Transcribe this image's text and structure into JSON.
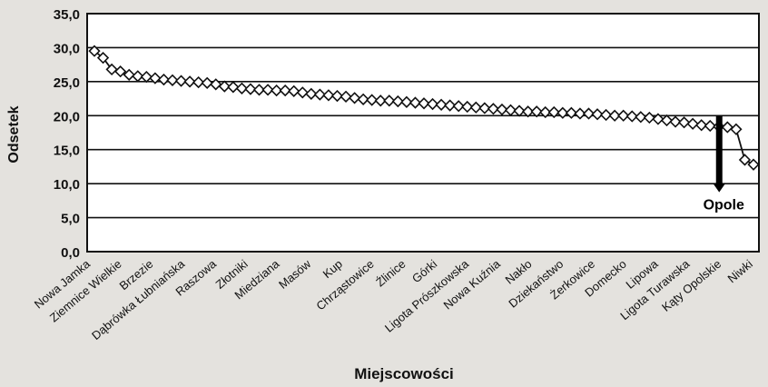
{
  "chart_data": {
    "type": "line",
    "xlabel": "Miejscowości",
    "ylabel": "Odsetek",
    "ylim": [
      0,
      35
    ],
    "yticks": [
      "0,0",
      "5,0",
      "10,0",
      "15,0",
      "20,0",
      "25,0",
      "30,0",
      "35,0"
    ],
    "grid": true,
    "category_labels": [
      "Nowa Jamka",
      "Ziemnice Wielkie",
      "Brzezie",
      "Dąbrówka Łubniańska",
      "Raszowa",
      "Złotniki",
      "Miedziana",
      "Masów",
      "Kup",
      "Chrząstowice",
      "Źlinice",
      "Górki",
      "Ligota Prószkowska",
      "Nowa Kuźnia",
      "Nakło",
      "Dziekaństwo",
      "Żerkowice",
      "Domecko",
      "Lipowa",
      "Ligota Turawska",
      "Kąty Opolskie",
      "Niwki"
    ],
    "series": [
      {
        "name": "",
        "values": [
          29.5,
          28.5,
          26.8,
          26.5,
          26.0,
          25.8,
          25.7,
          25.5,
          25.3,
          25.2,
          25.1,
          25.0,
          24.9,
          24.8,
          24.6,
          24.3,
          24.2,
          24.0,
          23.9,
          23.8,
          23.8,
          23.7,
          23.7,
          23.6,
          23.4,
          23.2,
          23.1,
          23.0,
          22.9,
          22.8,
          22.6,
          22.4,
          22.3,
          22.2,
          22.2,
          22.1,
          22.0,
          21.9,
          21.8,
          21.7,
          21.6,
          21.5,
          21.4,
          21.3,
          21.2,
          21.1,
          21.0,
          20.9,
          20.8,
          20.7,
          20.6,
          20.6,
          20.5,
          20.5,
          20.4,
          20.4,
          20.3,
          20.3,
          20.2,
          20.1,
          20.0,
          20.0,
          19.9,
          19.8,
          19.7,
          19.5,
          19.3,
          19.1,
          19.0,
          18.8,
          18.6,
          18.5,
          18.4,
          18.3,
          18.0,
          13.5,
          12.8
        ]
      }
    ],
    "annotation": {
      "text": "Opole",
      "y_from": 20.0,
      "y_to": 9.0,
      "category": "Kąty Opolskie"
    }
  }
}
